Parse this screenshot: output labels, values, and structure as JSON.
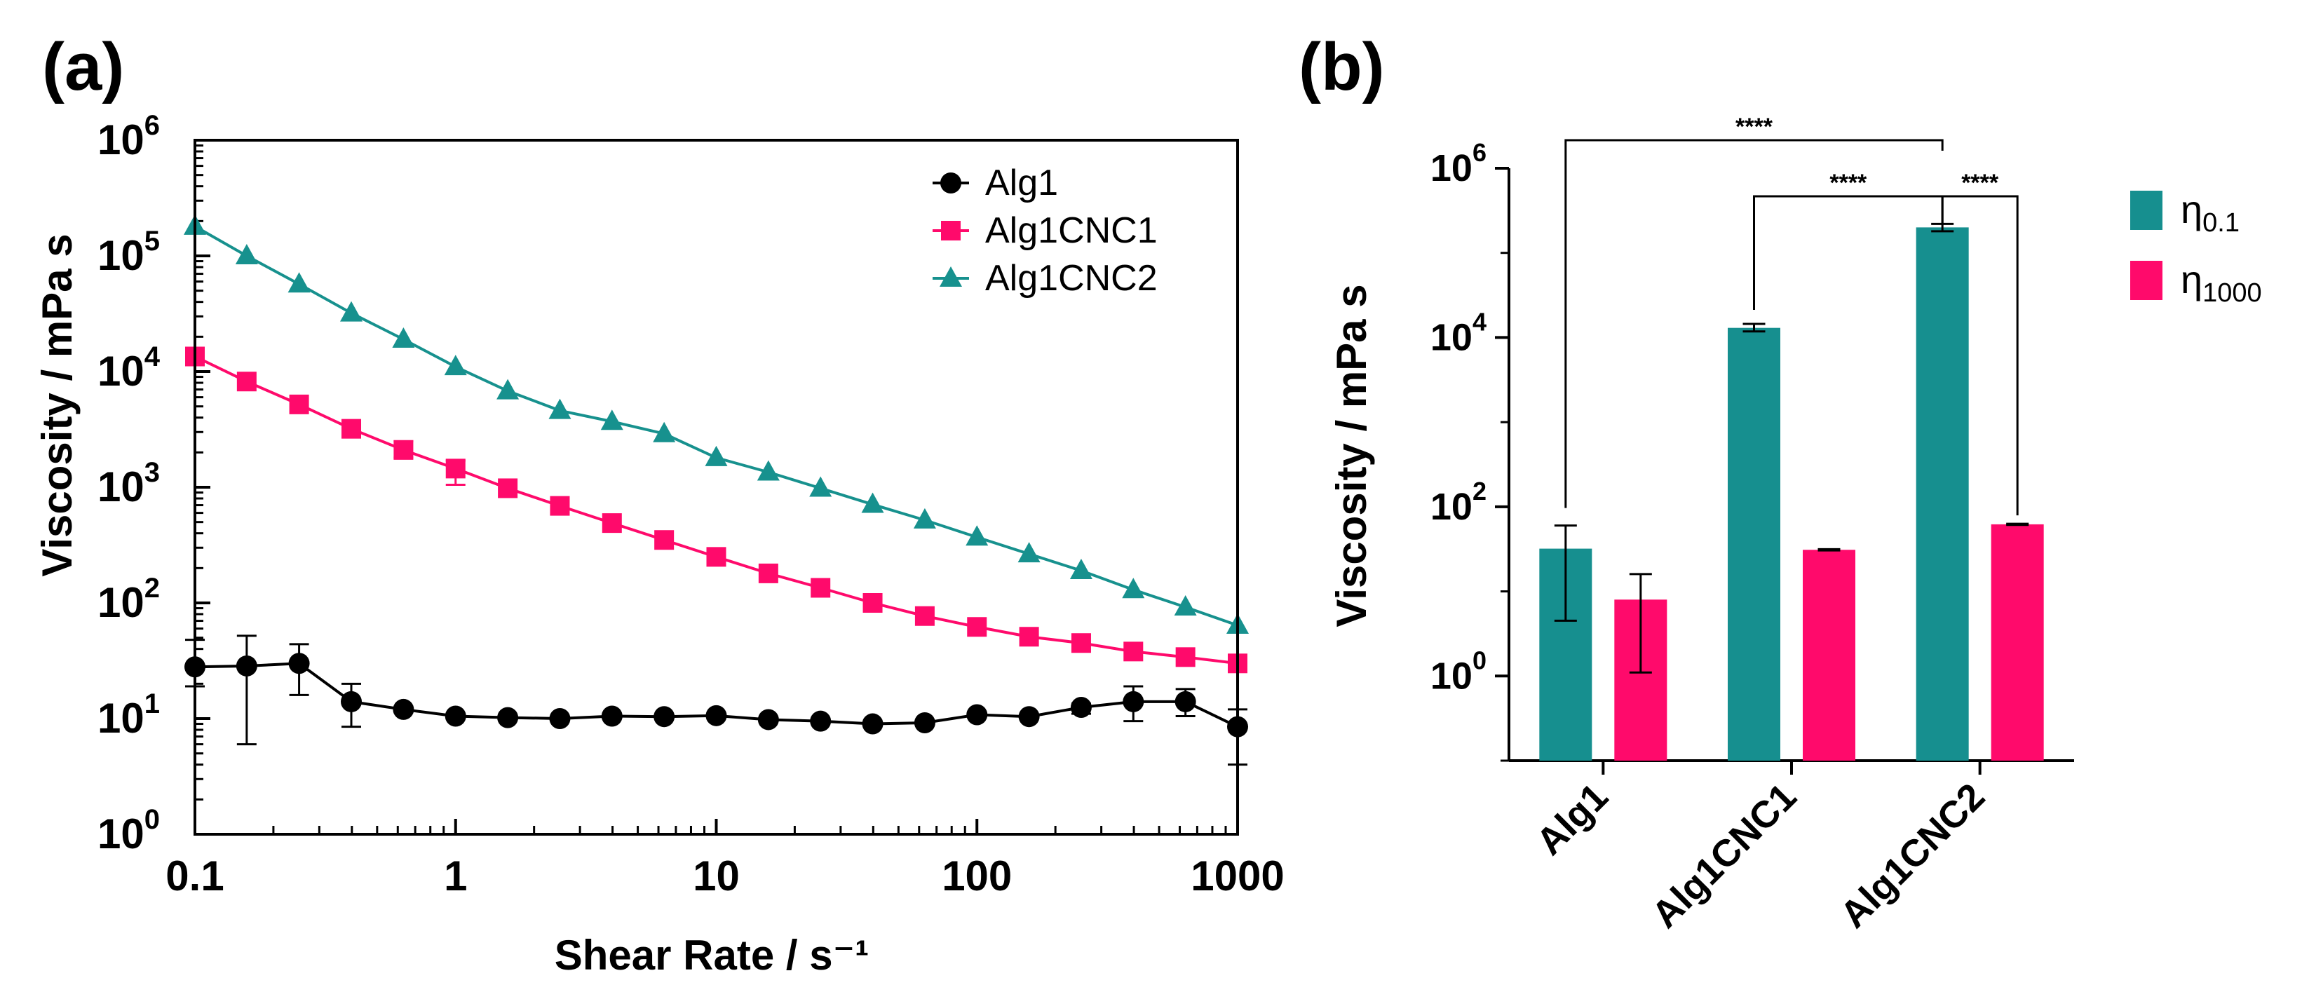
{
  "panels": {
    "a": {
      "label": "(a)",
      "chart_data": {
        "type": "line",
        "xscale": "log",
        "yscale": "log",
        "xlabel": "Shear Rate / s⁻¹",
        "ylabel": "Viscosity / mPa s",
        "xlim": [
          0.1,
          1000
        ],
        "ylim": [
          1,
          1000000
        ],
        "xticks": [
          {
            "value": 0.1,
            "label": "0.1"
          },
          {
            "value": 1,
            "label": "1"
          },
          {
            "value": 10,
            "label": "10"
          },
          {
            "value": 100,
            "label": "100"
          },
          {
            "value": 1000,
            "label": "1000"
          }
        ],
        "yticks": [
          {
            "value": 1,
            "base": "10",
            "exp": "0"
          },
          {
            "value": 10,
            "base": "10",
            "exp": "1"
          },
          {
            "value": 100,
            "base": "10",
            "exp": "2"
          },
          {
            "value": 1000,
            "base": "10",
            "exp": "3"
          },
          {
            "value": 10000,
            "base": "10",
            "exp": "4"
          },
          {
            "value": 100000,
            "base": "10",
            "exp": "5"
          },
          {
            "value": 1000000,
            "base": "10",
            "exp": "6"
          }
        ],
        "legend_position": "top-right",
        "x": [
          0.1,
          0.158,
          0.251,
          0.398,
          0.631,
          1,
          1.585,
          2.512,
          3.981,
          6.31,
          10,
          15.85,
          25.12,
          39.81,
          63.1,
          100,
          158.5,
          251.2,
          398.1,
          631,
          1000
        ],
        "series": [
          {
            "name": "Alg1",
            "color": "#000000",
            "marker": "circle",
            "values": [
              28,
              28.5,
              30,
              14,
              12,
              10.5,
              10.2,
              10,
              10.5,
              10.4,
              10.6,
              9.8,
              9.5,
              9,
              9.2,
              10.8,
              10.4,
              12.5,
              14,
              14,
              8.5
            ],
            "err_low": [
              19,
              6,
              16,
              8.5,
              null,
              null,
              null,
              null,
              null,
              null,
              null,
              null,
              null,
              null,
              null,
              null,
              null,
              11,
              9.5,
              10.5,
              4
            ],
            "err_high": [
              48,
              52,
              44,
              20,
              null,
              null,
              null,
              null,
              null,
              null,
              null,
              null,
              null,
              null,
              null,
              null,
              null,
              13.5,
              19,
              18,
              12
            ]
          },
          {
            "name": "Alg1CNC1",
            "color": "#ff0a6b",
            "marker": "square",
            "values": [
              13500,
              8200,
              5200,
              3200,
              2100,
              1450,
              980,
              690,
              490,
              350,
              250,
              180,
              135,
              100,
              77,
              62,
              51,
              45,
              38,
              34,
              30
            ],
            "err_low": [
              null,
              null,
              null,
              null,
              1800,
              1050,
              null,
              null,
              null,
              null,
              null,
              null,
              null,
              null,
              null,
              null,
              null,
              null,
              null,
              null,
              null
            ],
            "err_high": [
              null,
              null,
              null,
              null,
              2500,
              1700,
              null,
              null,
              null,
              null,
              null,
              null,
              null,
              null,
              null,
              null,
              null,
              null,
              null,
              null,
              null
            ]
          },
          {
            "name": "Alg1CNC2",
            "color": "#17918e",
            "marker": "triangle",
            "values": [
              180000,
              100000,
              57000,
              32000,
              19000,
              11000,
              6800,
              4600,
              3700,
              2900,
              1800,
              1350,
              980,
              710,
              520,
              370,
              265,
              190,
              130,
              92,
              64
            ],
            "err_low": [],
            "err_high": []
          }
        ]
      }
    },
    "b": {
      "label": "(b)",
      "chart_data": {
        "type": "bar",
        "yscale": "log",
        "ylabel": "Viscosity / mPa s",
        "ylim": [
          0.1,
          1000000
        ],
        "yticks": [
          {
            "value": 1,
            "base": "10",
            "exp": "0"
          },
          {
            "value": 100,
            "base": "10",
            "exp": "2"
          },
          {
            "value": 10000,
            "base": "10",
            "exp": "4"
          },
          {
            "value": 1000000,
            "base": "10",
            "exp": "6"
          }
        ],
        "categories": [
          "Alg1",
          "Alg1CNC1",
          "Alg1CNC2"
        ],
        "legend_position": "right",
        "series": [
          {
            "name": "η0.1",
            "label_main": "η",
            "label_sub": "0.1",
            "color": "#168f8f",
            "values": [
              32,
              13000,
              200000
            ],
            "err_low": [
              4.5,
              11800,
              180000
            ],
            "err_high": [
              60,
              14500,
              220000
            ]
          },
          {
            "name": "η1000",
            "label_main": "η",
            "label_sub": "1000",
            "color": "#ff0a6b",
            "values": [
              8,
              31,
              62
            ],
            "err_low": [
              1.1,
              30.5,
              61
            ],
            "err_high": [
              16,
              31.5,
              63
            ]
          }
        ],
        "significance": [
          {
            "label": "****",
            "from": "Alg1 η0.1",
            "to": "Alg1CNC2 η0.1"
          },
          {
            "label": "****",
            "from": "Alg1CNC1 η0.1",
            "to": "Alg1CNC2 η0.1"
          },
          {
            "label": "****",
            "from": "Alg1CNC2 η0.1",
            "to": "Alg1CNC2 η1000"
          }
        ]
      }
    }
  }
}
